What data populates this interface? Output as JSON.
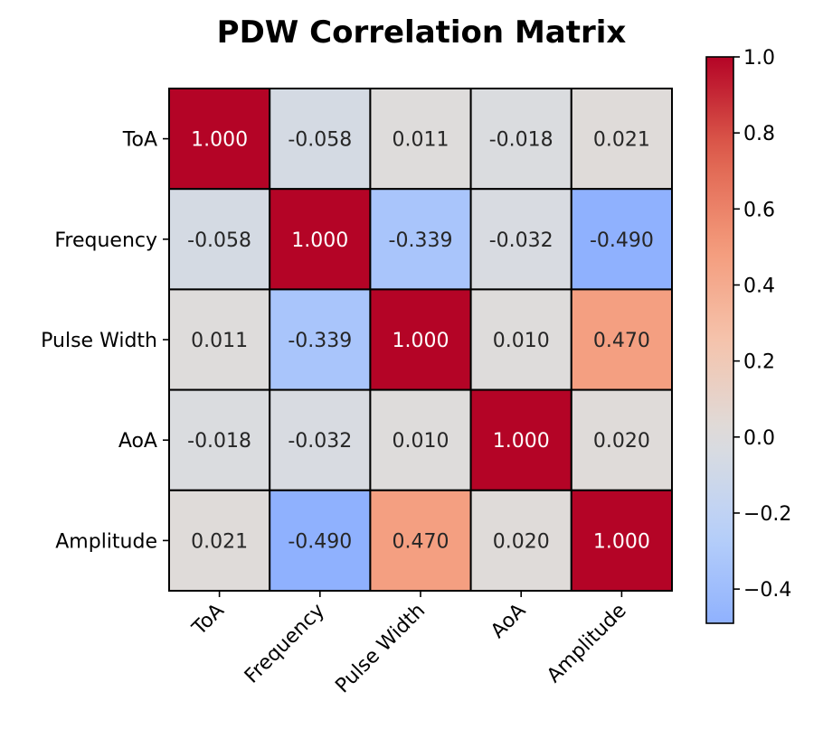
{
  "chart_data": {
    "type": "heatmap",
    "title": "PDW Correlation Matrix",
    "xlabel": "",
    "ylabel": "",
    "row_labels": [
      "ToA",
      "Frequency",
      "Pulse Width",
      "AoA",
      "Amplitude"
    ],
    "col_labels": [
      "ToA",
      "Frequency",
      "Pulse Width",
      "AoA",
      "Amplitude"
    ],
    "values": [
      [
        1.0,
        -0.058,
        0.011,
        -0.018,
        0.021
      ],
      [
        -0.058,
        1.0,
        -0.339,
        -0.032,
        -0.49
      ],
      [
        0.011,
        -0.339,
        1.0,
        0.01,
        0.47
      ],
      [
        -0.018,
        -0.032,
        0.01,
        1.0,
        0.02
      ],
      [
        0.021,
        -0.49,
        0.47,
        0.02,
        1.0
      ]
    ],
    "value_labels": [
      [
        "1.000",
        "-0.058",
        "0.011",
        "-0.018",
        "0.021"
      ],
      [
        "-0.058",
        "1.000",
        "-0.339",
        "-0.032",
        "-0.490"
      ],
      [
        "0.011",
        "-0.339",
        "1.000",
        "0.010",
        "0.470"
      ],
      [
        "-0.018",
        "-0.032",
        "0.010",
        "1.000",
        "0.020"
      ],
      [
        "0.021",
        "-0.490",
        "0.470",
        "0.020",
        "1.000"
      ]
    ],
    "colormap": "coolwarm",
    "color_range": [
      -1.0,
      1.0
    ],
    "colorbar": {
      "range": [
        -0.49,
        1.0
      ],
      "ticks": [
        -0.4,
        -0.2,
        0.0,
        0.2,
        0.4,
        0.6,
        0.8,
        1.0
      ],
      "tick_labels": [
        "−0.4",
        "−0.2",
        "0.0",
        "0.2",
        "0.4",
        "0.6",
        "0.8",
        "1.0"
      ],
      "position": "right"
    },
    "grid": false,
    "x_tick_rotation_deg": 45
  }
}
